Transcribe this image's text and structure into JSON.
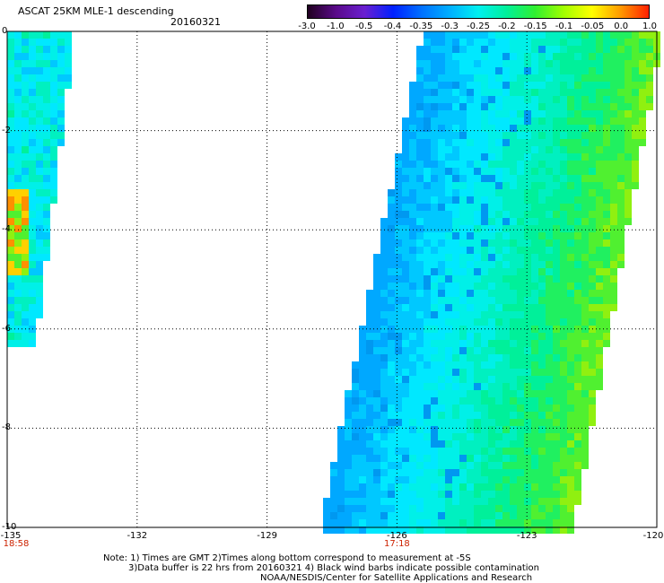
{
  "header": {
    "title": "ASCAT 25KM MLE-1 descending",
    "date": "20160321"
  },
  "colorbar": {
    "labels": [
      "-3.0",
      "-1.0",
      "-0.5",
      "-0.4",
      "-0.35",
      "-0.3",
      "-0.25",
      "-0.2",
      "-0.15",
      "-0.1",
      "-0.05",
      "0.0",
      "1.0"
    ],
    "colors": [
      "#200020",
      "#5a0a8a",
      "#6a1fd0",
      "#0020ff",
      "#0070ff",
      "#00b0ff",
      "#00f0f0",
      "#00f09a",
      "#30f030",
      "#a0ff00",
      "#ffff00",
      "#ff9a00",
      "#ff2000"
    ]
  },
  "axes": {
    "y_labels": [
      "0",
      "-2",
      "-4",
      "-6",
      "-8",
      "-10"
    ],
    "x_labels": [
      "-135",
      "-132",
      "-129",
      "-126",
      "-123",
      "-120"
    ],
    "time_labels": [
      {
        "text": "18:58",
        "lon": -135
      },
      {
        "text": "17:18",
        "lon": -126
      }
    ]
  },
  "map": {
    "lon_range": [
      -135,
      -120
    ],
    "lat_range": [
      0,
      -10
    ],
    "grid": "dotted"
  },
  "notes": [
    "Note: 1) Times are GMT 2)Times along bottom correspond to measurement at -5S",
    "3)Data buffer is 22 hrs from 20160321 4) Black wind barbs indicate possible contamination",
    "NOAA/NESDIS/Center for Satellite Applications and Research"
  ]
}
